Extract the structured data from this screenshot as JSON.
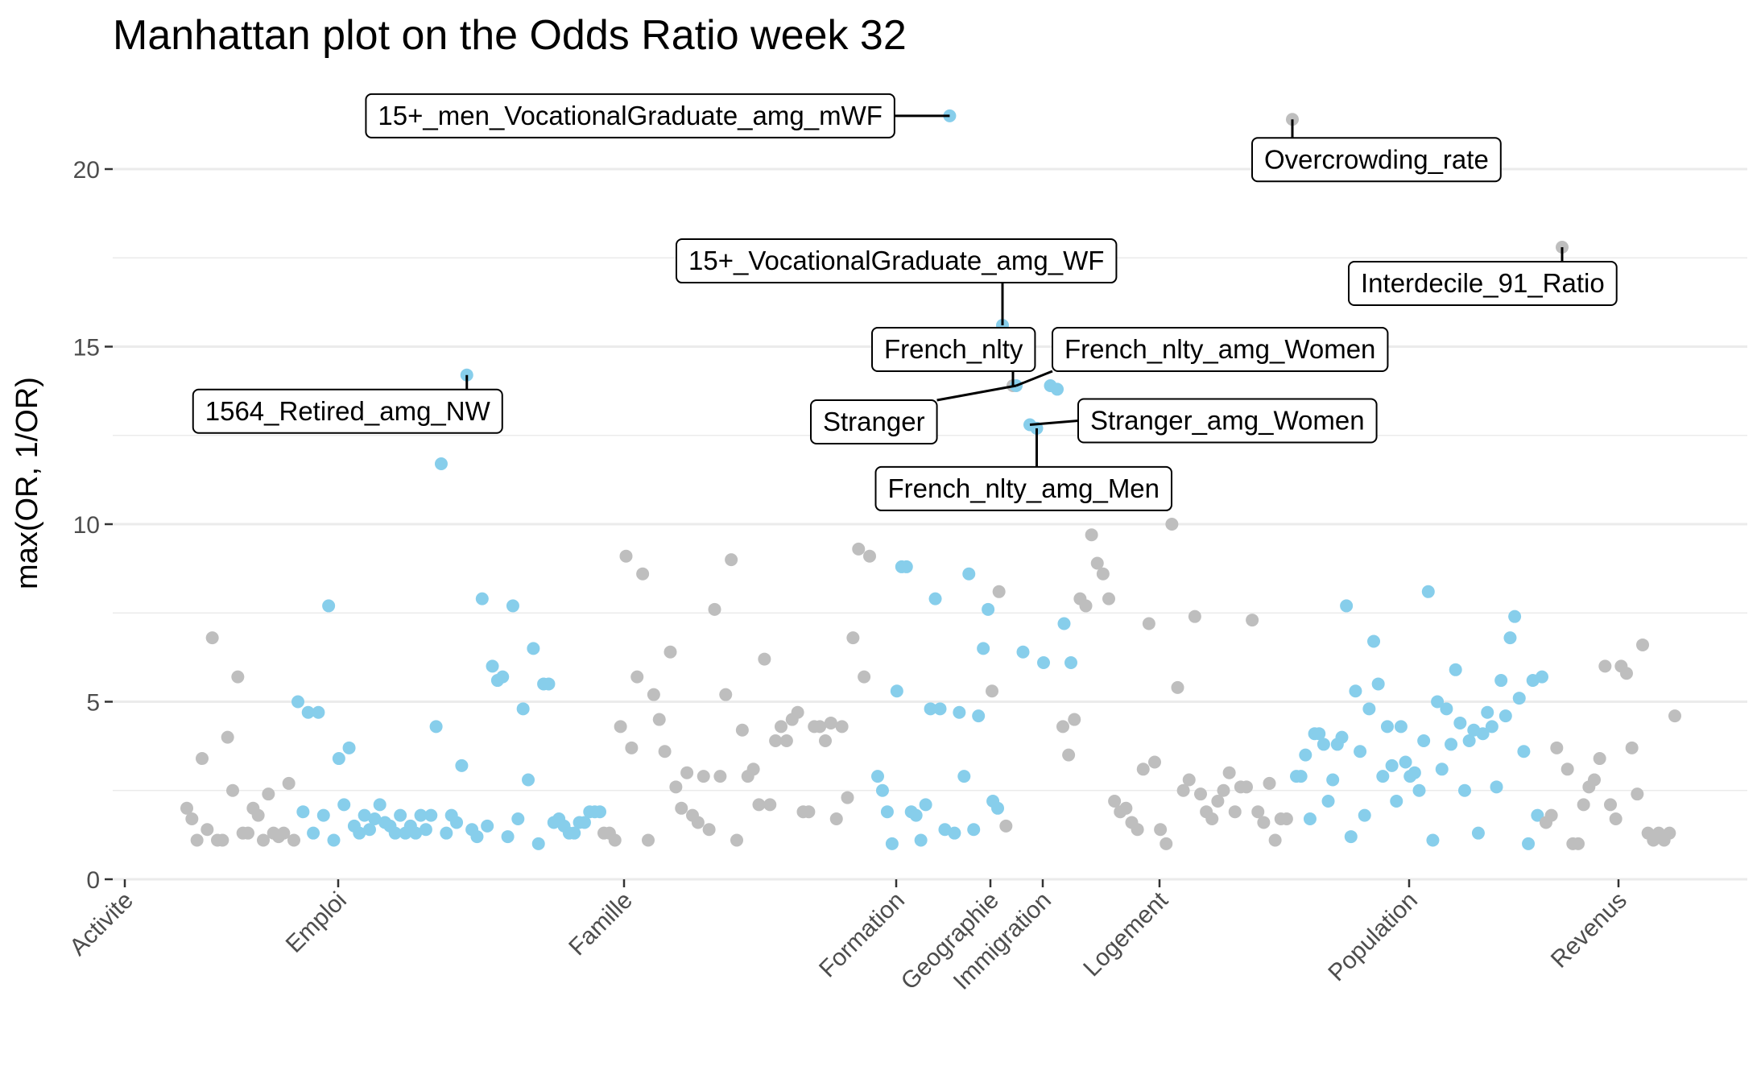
{
  "chart_data": {
    "type": "scatter",
    "title": "Manhattan plot on the Odds Ratio week 32",
    "xlabel": "",
    "ylabel": "max(OR, 1/OR)",
    "ylim": [
      0,
      22
    ],
    "yticks": [
      0,
      5,
      10,
      15,
      20
    ],
    "grid": true,
    "legend": "none",
    "colors": {
      "alt_a": "#BEBEBE",
      "alt_b": "#87CEEB"
    },
    "categories": [
      {
        "name": "Activite",
        "label": "Activite",
        "center": 155,
        "color": "grey",
        "values": [
          2.0,
          1.7,
          1.1,
          3.4,
          1.4,
          6.8,
          1.1,
          1.1,
          4.0,
          2.5,
          5.7,
          1.3,
          1.3,
          2.0,
          1.8,
          1.1,
          2.4,
          1.3,
          1.2,
          1.3,
          2.7,
          1.1
        ]
      },
      {
        "name": "Emploi",
        "label": "Emploi",
        "center": 420,
        "color": "blue",
        "values": [
          5.0,
          1.9,
          4.7,
          1.3,
          4.7,
          1.8,
          7.7,
          1.1,
          3.4,
          2.1,
          3.7,
          1.5,
          1.3,
          1.8,
          1.4,
          1.7,
          2.1,
          1.6,
          1.5,
          1.3,
          1.8,
          1.3,
          1.5,
          1.3,
          1.8,
          1.4,
          1.8,
          4.3,
          11.7,
          1.3,
          1.8,
          1.6,
          3.2,
          14.2,
          1.4,
          1.2,
          7.9,
          1.5,
          6.0,
          5.6,
          5.7,
          1.2,
          7.7,
          1.7,
          4.8,
          2.8,
          6.5,
          1.0,
          5.5,
          5.5,
          1.6,
          1.7,
          1.5,
          1.3,
          1.3,
          1.6,
          1.6,
          1.9,
          1.9,
          1.9
        ]
      },
      {
        "name": "Famille",
        "label": "Famille",
        "center": 775,
        "color": "grey",
        "values": [
          1.3,
          1.3,
          1.1,
          4.3,
          9.1,
          3.7,
          5.7,
          8.6,
          1.1,
          5.2,
          4.5,
          3.6,
          6.4,
          2.6,
          2.0,
          3.0,
          1.8,
          1.6,
          2.9,
          1.4,
          7.6,
          2.9,
          5.2,
          9.0,
          1.1,
          4.2,
          2.9,
          3.1,
          2.1,
          6.2,
          2.1,
          3.9,
          4.3,
          3.9,
          4.5,
          4.7,
          1.9,
          1.9,
          4.3,
          4.3,
          3.9,
          4.4,
          1.7,
          4.3,
          2.3,
          6.8,
          9.3,
          5.7,
          9.1
        ]
      },
      {
        "name": "Formation",
        "label": "Formation",
        "center": 1113,
        "color": "blue",
        "values": [
          2.9,
          2.5,
          1.9,
          1.0,
          5.3,
          8.8,
          8.8,
          1.9,
          1.8,
          1.1,
          2.1,
          4.8,
          7.9,
          4.8,
          1.4,
          21.5,
          1.3,
          4.7,
          2.9,
          8.6,
          1.4,
          4.6,
          6.5,
          7.6,
          2.2,
          2.0,
          15.6
        ]
      },
      {
        "name": "Geographie",
        "label": "Geographie",
        "center": 1230,
        "color": "grey",
        "values": [
          5.3,
          8.1,
          1.5,
          13.9
        ]
      },
      {
        "name": "Immigration",
        "label": "Immigration",
        "center": 1295,
        "color": "blue",
        "values": [
          13.9,
          6.4,
          12.8,
          12.7,
          6.1,
          13.9,
          13.8,
          7.2,
          6.1
        ]
      },
      {
        "name": "Logement",
        "label": "Logement",
        "center": 1440,
        "color": "grey",
        "values": [
          4.3,
          3.5,
          4.5,
          7.9,
          7.7,
          9.7,
          8.9,
          8.6,
          7.9,
          2.2,
          1.9,
          2.0,
          1.6,
          1.4,
          3.1,
          7.2,
          3.3,
          1.4,
          1.0,
          10.0,
          5.4,
          2.5,
          2.8,
          7.4,
          2.4,
          1.9,
          1.7,
          2.2,
          2.5,
          3.0,
          1.9,
          2.6,
          2.6,
          7.3,
          1.9,
          1.6,
          2.7,
          1.1,
          1.7,
          1.7,
          21.4
        ]
      },
      {
        "name": "Population",
        "label": "Population",
        "center": 1750,
        "color": "blue",
        "values": [
          2.9,
          2.9,
          3.5,
          1.7,
          4.1,
          4.1,
          3.8,
          2.2,
          2.8,
          3.8,
          4.0,
          7.7,
          1.2,
          5.3,
          3.6,
          1.8,
          4.8,
          6.7,
          5.5,
          2.9,
          4.3,
          3.2,
          2.2,
          4.3,
          3.3,
          2.9,
          3.0,
          2.5,
          3.9,
          8.1,
          1.1,
          5.0,
          3.1,
          4.8,
          3.8,
          5.9,
          4.4,
          2.5,
          3.9,
          4.2,
          1.3,
          4.1,
          4.7,
          4.3,
          2.6,
          5.6,
          4.6,
          6.8,
          7.4,
          5.1,
          3.6,
          1.0,
          5.6,
          1.8,
          5.7
        ]
      },
      {
        "name": "Revenus",
        "label": "Revenus",
        "center": 2010,
        "color": "grey",
        "values": [
          1.6,
          1.8,
          3.7,
          17.8,
          3.1,
          1.0,
          1.0,
          2.1,
          2.6,
          2.8,
          3.4,
          6.0,
          2.1,
          1.7,
          6.0,
          5.8,
          3.7,
          2.4,
          6.6,
          1.3,
          1.1,
          1.3,
          1.1,
          1.3,
          4.6
        ]
      }
    ],
    "annotations": [
      {
        "text": "15+_men_VocationalGraduate_amg_mWF",
        "category": "Formation",
        "y": 21.5
      },
      {
        "text": "Overcrowding_rate",
        "category": "Logement",
        "y": 21.4
      },
      {
        "text": "Interdecile_91_Ratio",
        "category": "Revenus",
        "y": 17.8
      },
      {
        "text": "15+_VocationalGraduate_amg_WF",
        "category": "Formation",
        "y": 15.6
      },
      {
        "text": "French_nlty",
        "category": "Geographie",
        "y": 13.9
      },
      {
        "text": "French_nlty_amg_Women",
        "category": "Immigration",
        "y": 13.9
      },
      {
        "text": "Stranger",
        "category": "Immigration",
        "y": 13.9
      },
      {
        "text": "Stranger_amg_Women",
        "category": "Immigration",
        "y": 12.8
      },
      {
        "text": "French_nlty_amg_Men",
        "category": "Immigration",
        "y": 12.7
      },
      {
        "text": "1564_Retired_amg_NW",
        "category": "Emploi",
        "y": 14.2
      }
    ]
  }
}
